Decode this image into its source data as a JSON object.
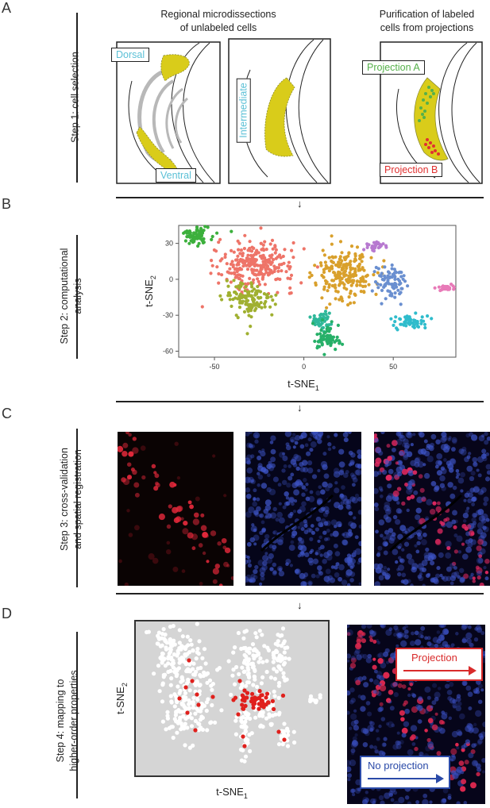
{
  "panels": {
    "a": "A",
    "b": "B",
    "c": "C",
    "d": "D"
  },
  "steps": {
    "s1": "Step 1: cell selection",
    "s2a": "Step 2: computational",
    "s2b": "analysis",
    "s3a": "Step 3: cross-validation",
    "s3b": "and spatial registration",
    "s4a": "Step 4: mapping to",
    "s4b": "higher-order properties"
  },
  "panel_a": {
    "title_left_1": "Regional microdissections",
    "title_left_2": "of unlabeled cells",
    "title_right_1": "Purification of labeled",
    "title_right_2": "cells from projections",
    "dorsal": "Dorsal",
    "ventral": "Ventral",
    "intermediate": "Intermediate",
    "projection_a": "Projection A",
    "projection_b": "Projection B",
    "colors": {
      "region": "#d9cc1a",
      "label_cyan": "#5bc0d6",
      "proj_a": "#55b04a",
      "proj_b": "#e03030"
    }
  },
  "panel_d": {
    "projection": "Projection",
    "no_projection": "No projection",
    "colors": {
      "projection": "#d92b2b",
      "no_projection": "#2a4aa8",
      "highlight": "#e0201c"
    }
  },
  "chart_data": [
    {
      "type": "scatter",
      "title": "",
      "xlabel": "t-SNE",
      "xlabel_sub": "1",
      "ylabel": "t-SNE",
      "ylabel_sub": "2",
      "xlim": [
        -70,
        85
      ],
      "ylim": [
        -65,
        45
      ],
      "xticks": [
        -50,
        0,
        50
      ],
      "yticks": [
        30,
        0,
        -30,
        -60
      ],
      "grid": false,
      "clusters": [
        {
          "color": "#3cb03c",
          "cx": -60,
          "cy": 38,
          "sx": 5,
          "sy": 5
        },
        {
          "color": "#ee7468",
          "cx": -27,
          "cy": 12,
          "sx": 11,
          "sy": 10
        },
        {
          "color": "#a0b030",
          "cx": -30,
          "cy": -17,
          "sx": 7,
          "sy": 7
        },
        {
          "color": "#d9a02c",
          "cx": 23,
          "cy": 5,
          "sx": 8,
          "sy": 11
        },
        {
          "color": "#b779d0",
          "cx": 40,
          "cy": 28,
          "sx": 3,
          "sy": 2
        },
        {
          "color": "#6a8fd0",
          "cx": 48,
          "cy": -2,
          "sx": 4,
          "sy": 7
        },
        {
          "color": "#2fbccc",
          "cx": 60,
          "cy": -36,
          "sx": 5,
          "sy": 3
        },
        {
          "color": "#e87ab8",
          "cx": 80,
          "cy": -7,
          "sx": 3,
          "sy": 1
        },
        {
          "color": "#2fb89a",
          "cx": 9,
          "cy": -35,
          "sx": 3,
          "sy": 4
        },
        {
          "color": "#26b068",
          "cx": 13,
          "cy": -49,
          "sx": 4,
          "sy": 5
        }
      ]
    },
    {
      "type": "scatter",
      "title": "",
      "xlabel": "t-SNE",
      "xlabel_sub": "1",
      "ylabel": "t-SNE",
      "ylabel_sub": "2",
      "grid": false,
      "series": [
        {
          "name": "",
          "color": "#ffffff"
        },
        {
          "name": "",
          "color": "#e0201c"
        }
      ]
    }
  ]
}
